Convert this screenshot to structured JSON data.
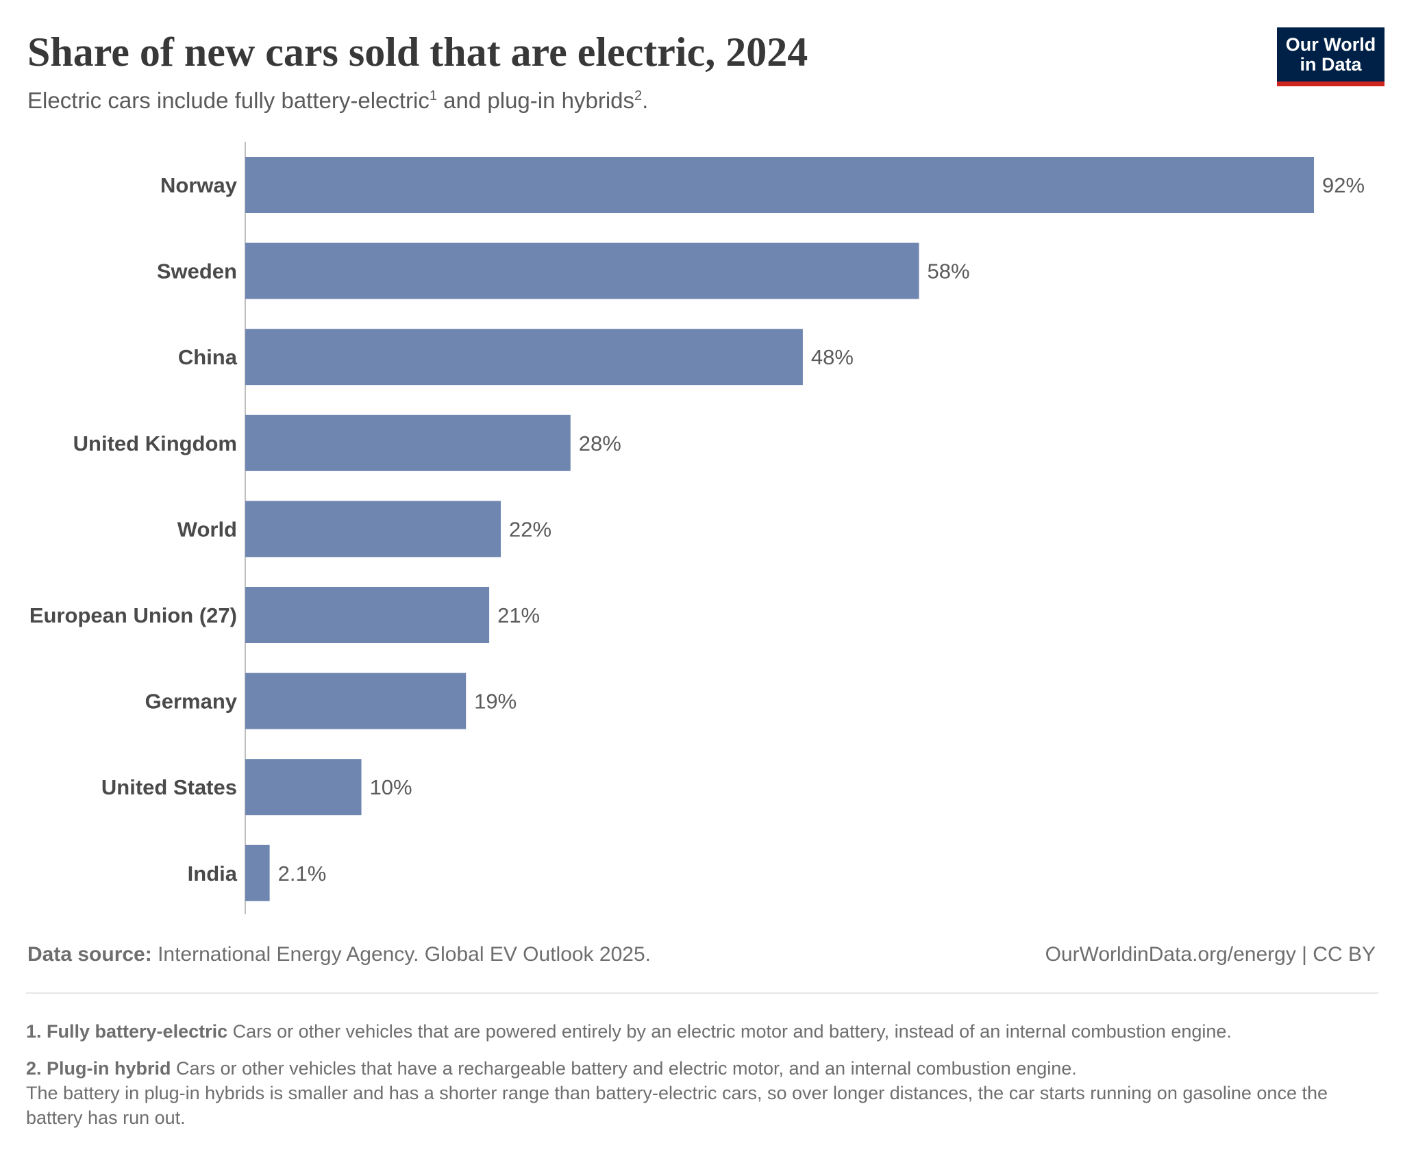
{
  "title": "Share of new cars sold that are electric, 2024",
  "subtitle": {
    "text_part1": "Electric cars include fully battery-electric",
    "sup1": "1",
    "text_part2": " and plug-in hybrids",
    "sup2": "2",
    "text_part3": "."
  },
  "logo": {
    "line1": "Our World",
    "line2": "in Data",
    "colors": {
      "background": "#002147",
      "accent": "#ce261e"
    }
  },
  "chart_data": {
    "type": "bar",
    "orientation": "horizontal",
    "categories": [
      "Norway",
      "Sweden",
      "China",
      "United Kingdom",
      "World",
      "European Union (27)",
      "Germany",
      "United States",
      "India"
    ],
    "values": [
      92,
      58,
      48,
      28,
      22,
      21,
      19,
      10,
      2.1
    ],
    "value_labels": [
      "92%",
      "58%",
      "48%",
      "28%",
      "22%",
      "21%",
      "19%",
      "10%",
      "2.1%"
    ],
    "unit": "%",
    "xlim": [
      0,
      92
    ],
    "bar_color": "#6f87b0",
    "grid": false,
    "legend": "none"
  },
  "footer": {
    "source_label": "Data source:",
    "source_text": " International Energy Agency. Global EV Outlook 2025.",
    "credit": "OurWorldinData.org/energy | CC BY"
  },
  "notes": [
    {
      "term": "1. Fully battery-electric",
      "text": " Cars or other vehicles that are powered entirely by an electric motor and battery, instead of an internal combustion engine.",
      "extra": ""
    },
    {
      "term": "2. Plug-in hybrid",
      "text": " Cars or other vehicles that have a rechargeable battery and electric motor, and an internal combustion engine.",
      "extra": "The battery in plug-in hybrids is smaller and has a shorter range than battery-electric cars, so over longer distances, the car starts running on gasoline once the battery has run out."
    }
  ]
}
